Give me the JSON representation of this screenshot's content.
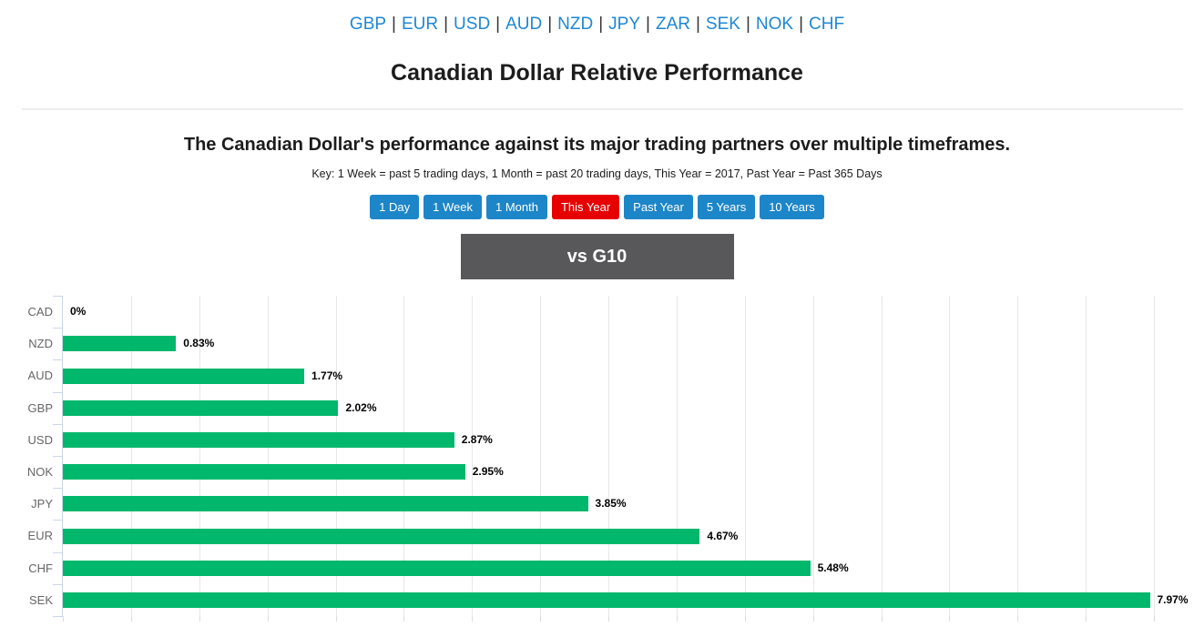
{
  "nav": {
    "separator": "|",
    "links": [
      "GBP",
      "EUR",
      "USD",
      "AUD",
      "NZD",
      "JPY",
      "ZAR",
      "SEK",
      "NOK",
      "CHF"
    ]
  },
  "header": {
    "title": "Canadian Dollar Relative Performance"
  },
  "intro": {
    "subtitle": "The Canadian Dollar's performance against its major trading partners over multiple timeframes.",
    "key_text": "Key: 1 Week = past 5 trading days, 1 Month = past 20 trading days, This Year = 2017, Past Year = Past 365 Days"
  },
  "timeframes": {
    "buttons": [
      {
        "label": "1 Day",
        "active": false
      },
      {
        "label": "1 Week",
        "active": false
      },
      {
        "label": "1 Month",
        "active": false
      },
      {
        "label": "This Year",
        "active": true
      },
      {
        "label": "Past Year",
        "active": false
      },
      {
        "label": "5 Years",
        "active": false
      },
      {
        "label": "10 Years",
        "active": false
      }
    ]
  },
  "group_header": {
    "label": "vs G10"
  },
  "colors": {
    "link_blue": "#1e87d5",
    "button_blue": "#1d86c8",
    "active_red": "#e60000",
    "bar_green": "#00b76b",
    "group_bg": "#58585a",
    "axis_line": "#ccd6eb",
    "gridline": "#e7e7e7"
  },
  "chart_data": {
    "type": "bar",
    "orientation": "horizontal",
    "categories": [
      "CAD",
      "NZD",
      "AUD",
      "GBP",
      "USD",
      "NOK",
      "JPY",
      "EUR",
      "CHF",
      "SEK"
    ],
    "values": [
      0,
      0.83,
      1.77,
      2.02,
      2.87,
      2.95,
      3.85,
      4.67,
      5.48,
      7.97
    ],
    "labels": [
      "0%",
      "0.83%",
      "1.77%",
      "2.02%",
      "2.87%",
      "2.95%",
      "3.85%",
      "4.67%",
      "5.48%",
      "7.97%"
    ],
    "title": "",
    "xlabel": "",
    "ylabel": "",
    "xlim": [
      0,
      8
    ],
    "gridline_step": 0.5,
    "grid": true,
    "legend": "none"
  }
}
